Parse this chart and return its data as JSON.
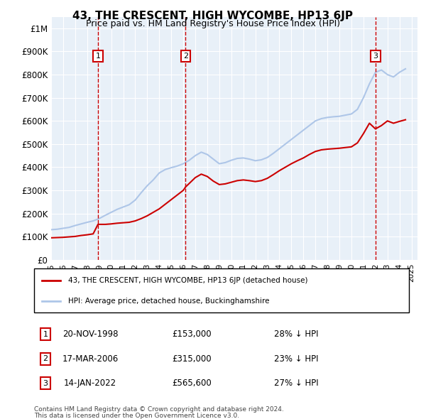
{
  "title": "43, THE CRESCENT, HIGH WYCOMBE, HP13 6JP",
  "subtitle": "Price paid vs. HM Land Registry's House Price Index (HPI)",
  "hpi_label": "HPI: Average price, detached house, Buckinghamshire",
  "property_label": "43, THE CRESCENT, HIGH WYCOMBE, HP13 6JP (detached house)",
  "footer1": "Contains HM Land Registry data © Crown copyright and database right 2024.",
  "footer2": "This data is licensed under the Open Government Licence v3.0.",
  "transactions": [
    {
      "num": 1,
      "date": "20-NOV-1998",
      "price": 153000,
      "pct": "28%",
      "dir": "↓",
      "x_year": 1998.9
    },
    {
      "num": 2,
      "date": "17-MAR-2006",
      "price": 315000,
      "pct": "23%",
      "dir": "↓",
      "x_year": 2006.2
    },
    {
      "num": 3,
      "date": "14-JAN-2022",
      "price": 565600,
      "pct": "27%",
      "dir": "↓",
      "x_year": 2022.0
    }
  ],
  "hpi_color": "#aec6e8",
  "price_color": "#cc0000",
  "transaction_box_color": "#cc0000",
  "background_color": "#e8f0f8",
  "ylim": [
    0,
    1050000
  ],
  "xlim_start": 1995,
  "xlim_end": 2025.5,
  "yticks": [
    0,
    100000,
    200000,
    300000,
    400000,
    500000,
    600000,
    700000,
    800000,
    900000,
    1000000
  ],
  "ytick_labels": [
    "£0",
    "£100K",
    "£200K",
    "£300K",
    "£400K",
    "£500K",
    "£600K",
    "£700K",
    "£800K",
    "£900K",
    "£1M"
  ],
  "hpi_data": {
    "years": [
      1995,
      1995.5,
      1996,
      1996.5,
      1997,
      1997.5,
      1998,
      1998.5,
      1999,
      1999.5,
      2000,
      2000.5,
      2001,
      2001.5,
      2002,
      2002.5,
      2003,
      2003.5,
      2004,
      2004.5,
      2005,
      2005.5,
      2006,
      2006.5,
      2007,
      2007.5,
      2008,
      2008.5,
      2009,
      2009.5,
      2010,
      2010.5,
      2011,
      2011.5,
      2012,
      2012.5,
      2013,
      2013.5,
      2014,
      2014.5,
      2015,
      2015.5,
      2016,
      2016.5,
      2017,
      2017.5,
      2018,
      2018.5,
      2019,
      2019.5,
      2020,
      2020.5,
      2021,
      2021.5,
      2022,
      2022.5,
      2023,
      2023.5,
      2024,
      2024.5
    ],
    "values": [
      130000,
      132000,
      136000,
      140000,
      148000,
      155000,
      162000,
      168000,
      178000,
      192000,
      205000,
      218000,
      228000,
      238000,
      258000,
      290000,
      320000,
      345000,
      375000,
      390000,
      398000,
      405000,
      415000,
      430000,
      450000,
      465000,
      455000,
      435000,
      415000,
      420000,
      430000,
      438000,
      440000,
      435000,
      428000,
      432000,
      442000,
      460000,
      480000,
      500000,
      520000,
      540000,
      560000,
      580000,
      600000,
      610000,
      615000,
      618000,
      620000,
      625000,
      630000,
      650000,
      700000,
      760000,
      810000,
      820000,
      800000,
      790000,
      810000,
      825000
    ]
  },
  "price_data": {
    "years": [
      1995,
      1995.5,
      1996,
      1996.5,
      1997,
      1997.5,
      1998,
      1998.5,
      1998.9,
      1999,
      1999.5,
      2000,
      2000.5,
      2001,
      2001.5,
      2002,
      2002.5,
      2003,
      2003.5,
      2004,
      2004.5,
      2005,
      2005.5,
      2006,
      2006.2,
      2006.5,
      2007,
      2007.5,
      2008,
      2008.5,
      2009,
      2009.5,
      2010,
      2010.5,
      2011,
      2011.5,
      2012,
      2012.5,
      2013,
      2013.5,
      2014,
      2014.5,
      2015,
      2015.5,
      2016,
      2016.5,
      2017,
      2017.5,
      2018,
      2018.5,
      2019,
      2019.5,
      2020,
      2020.5,
      2021,
      2021.5,
      2022,
      2022.0,
      2022.5,
      2023,
      2023.5,
      2024,
      2024.5
    ],
    "values": [
      95000,
      96000,
      97000,
      99000,
      101000,
      105000,
      108000,
      112000,
      153000,
      153000,
      153000,
      155000,
      158000,
      160000,
      162000,
      168000,
      178000,
      190000,
      205000,
      220000,
      240000,
      260000,
      280000,
      300000,
      315000,
      330000,
      355000,
      370000,
      360000,
      340000,
      325000,
      328000,
      335000,
      342000,
      345000,
      342000,
      338000,
      342000,
      352000,
      368000,
      385000,
      400000,
      415000,
      428000,
      440000,
      455000,
      468000,
      475000,
      478000,
      480000,
      482000,
      485000,
      488000,
      505000,
      545000,
      590000,
      565600,
      565600,
      580000,
      600000,
      590000,
      598000,
      605000
    ]
  }
}
